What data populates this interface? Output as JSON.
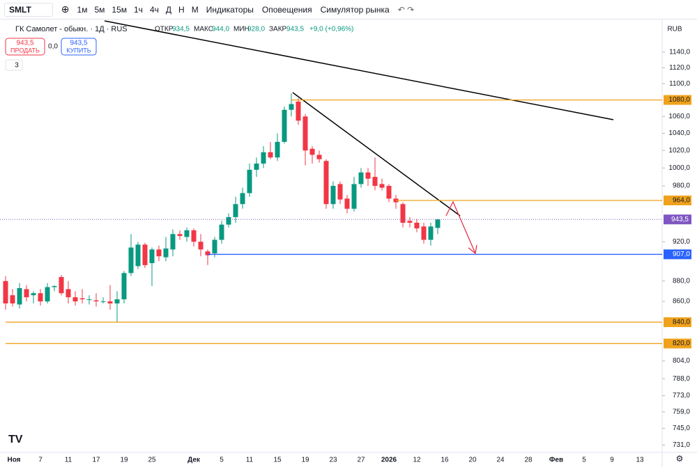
{
  "toolbar": {
    "symbol": "SMLT",
    "intervals": [
      "1м",
      "5м",
      "15м",
      "1ч",
      "4ч",
      "Д",
      "Н",
      "М"
    ],
    "indicators": "Индикаторы",
    "alerts": "Оповещения",
    "simulator": "Симулятор рынка"
  },
  "legend": {
    "title": "ГК Самолет - обыкн. · 1Д · RUS",
    "open_label": "ОТКР",
    "open": "934,5",
    "high_label": "МАКС",
    "high": "944,0",
    "low_label": "МИН",
    "low": "928,0",
    "close_label": "ЗАКР",
    "close": "943,5",
    "change": "+9,0 (+0,96%)",
    "sell_price": "943,5",
    "sell": "ПРОДАТЬ",
    "spread": "0,0",
    "buy_price": "943,5",
    "buy": "КУПИТЬ",
    "count": "3"
  },
  "currency": "RUB",
  "chart_data": {
    "type": "candlestick",
    "log_scale": true,
    "grid": false,
    "up_color": "#089981",
    "down_color": "#f23645",
    "categories": [
      null,
      "Ноя",
      null,
      null,
      null,
      "7",
      null,
      null,
      null,
      "11",
      null,
      null,
      null,
      "17",
      null,
      null,
      null,
      "19",
      null,
      null,
      null,
      "25",
      null,
      null,
      null,
      null,
      null,
      "Дек",
      null,
      null,
      null,
      "5",
      null,
      null,
      null,
      "11",
      null,
      null,
      null,
      "15",
      null,
      null,
      null,
      "19",
      null,
      null,
      null,
      "23",
      null,
      null,
      null,
      "27",
      null,
      null,
      null,
      "2026",
      null,
      null,
      null,
      "12",
      null,
      null,
      null,
      "16",
      null,
      null,
      null,
      "20",
      null,
      null,
      null,
      "24",
      null,
      null,
      null,
      "28",
      null,
      null,
      null,
      "Фев",
      null,
      null,
      null,
      "5",
      null,
      null,
      null,
      "9",
      null,
      null,
      null,
      "13",
      null
    ],
    "open": [
      880,
      866,
      857,
      872,
      866,
      868,
      860,
      874,
      884,
      872,
      864,
      863,
      862,
      861,
      860,
      860,
      858,
      862,
      888,
      895,
      917,
      898,
      912,
      904,
      912,
      928,
      925,
      932,
      920,
      910,
      908,
      922,
      938,
      946,
      960,
      972,
      998,
      1005,
      1018,
      1012,
      1030,
      1068,
      1078,
      1060,
      1022,
      1015,
      1008,
      960,
      982,
      966,
      955,
      982,
      995,
      990,
      982,
      980,
      966,
      960,
      942,
      940,
      936,
      922,
      934.5,
      null,
      null,
      null,
      null,
      null,
      null,
      null,
      null,
      null,
      null,
      null,
      null,
      null,
      null,
      null,
      null,
      null,
      null,
      null,
      null,
      null,
      null,
      null,
      null,
      null,
      null,
      null,
      null,
      null,
      null
    ],
    "high": [
      885,
      872,
      878,
      876,
      870,
      872,
      878,
      876,
      886,
      880,
      870,
      872,
      866,
      868,
      864,
      876,
      870,
      890,
      928,
      920,
      919,
      914,
      916,
      925,
      933,
      932,
      935,
      934,
      928,
      912,
      925,
      942,
      950,
      968,
      978,
      1005,
      1012,
      1025,
      1030,
      1040,
      1072,
      1088,
      1082,
      1063,
      1025,
      1020,
      1010,
      985,
      985,
      970,
      990,
      1000,
      1000,
      1012,
      988,
      982,
      970,
      962,
      946,
      944,
      940,
      940,
      944,
      null,
      null,
      null,
      null,
      null,
      null,
      null,
      null,
      null,
      null,
      null,
      null,
      null,
      null,
      null,
      null,
      null,
      null,
      null,
      null,
      null,
      null,
      null,
      null,
      null,
      null,
      null,
      null,
      null,
      null
    ],
    "low": [
      852,
      855,
      853,
      860,
      858,
      856,
      858,
      870,
      866,
      858,
      856,
      858,
      857,
      855,
      858,
      852,
      840,
      858,
      885,
      892,
      893,
      875,
      900,
      900,
      905,
      922,
      920,
      915,
      905,
      896,
      904,
      918,
      935,
      940,
      955,
      968,
      990,
      1000,
      1010,
      1008,
      1028,
      1060,
      1050,
      1003,
      1005,
      1006,
      955,
      955,
      960,
      950,
      952,
      978,
      980,
      975,
      975,
      962,
      955,
      935,
      935,
      930,
      918,
      916,
      928,
      null,
      null,
      null,
      null,
      null,
      null,
      null,
      null,
      null,
      null,
      null,
      null,
      null,
      null,
      null,
      null,
      null,
      null,
      null,
      null,
      null,
      null,
      null,
      null,
      null,
      null,
      null,
      null,
      null,
      null
    ],
    "close": [
      858,
      858,
      873,
      864,
      868,
      860,
      874,
      875,
      868,
      864,
      860,
      862,
      862,
      860,
      860,
      858,
      862,
      888,
      914,
      917,
      896,
      912,
      905,
      913,
      928,
      926,
      932,
      920,
      912,
      906,
      922,
      938,
      946,
      960,
      972,
      998,
      1005,
      1018,
      1012,
      1030,
      1068,
      1075,
      1055,
      1020,
      1015,
      1010,
      960,
      980,
      965,
      955,
      982,
      995,
      988,
      980,
      978,
      966,
      962,
      940,
      940,
      934,
      922,
      936,
      943.5,
      null,
      null,
      null,
      null,
      null,
      null,
      null,
      null,
      null,
      null,
      null,
      null,
      null,
      null,
      null,
      null,
      null,
      null,
      null,
      null,
      null,
      null,
      null,
      null,
      null,
      null,
      null,
      null,
      null,
      null
    ],
    "ylim": [
      725,
      1181
    ],
    "yticks": [
      {
        "value": 1140,
        "label": "1140,0"
      },
      {
        "value": 1120,
        "label": "1120,0"
      },
      {
        "value": 1100,
        "label": "1100,0"
      },
      {
        "value": 1060,
        "label": "1060,0"
      },
      {
        "value": 1040,
        "label": "1040,0"
      },
      {
        "value": 1020,
        "label": "1020,0"
      },
      {
        "value": 1000,
        "label": "1000,0"
      },
      {
        "value": 980,
        "label": "980,0"
      },
      {
        "value": 920,
        "label": "920,0"
      },
      {
        "value": 880,
        "label": "880,0"
      },
      {
        "value": 860,
        "label": "860,0"
      },
      {
        "value": 804,
        "label": "804,0"
      },
      {
        "value": 788,
        "label": "788,0"
      },
      {
        "value": 773,
        "label": "773,0"
      },
      {
        "value": 759,
        "label": "759,0"
      },
      {
        "value": 745,
        "label": "745,0"
      },
      {
        "value": 731,
        "label": "731,0"
      }
    ],
    "levels": [
      {
        "value": 1080,
        "label": "1080,0",
        "color": "#f0a21c",
        "start": 41
      },
      {
        "value": 964,
        "label": "964,0",
        "color": "#f0a21c",
        "start": 56
      },
      {
        "value": 907,
        "label": "907,0",
        "color": "#2962ff",
        "start": 29
      },
      {
        "value": 840,
        "label": "840,0",
        "color": "#f0a21c",
        "start": 0
      },
      {
        "value": 820,
        "label": "820,0",
        "color": "#f0a21c",
        "start": 0
      }
    ],
    "last_price": {
      "value": 943.5,
      "label": "943,5",
      "color": "#7e57c2"
    }
  }
}
